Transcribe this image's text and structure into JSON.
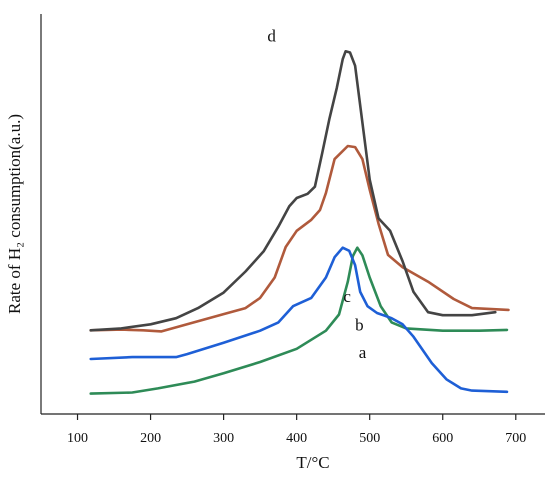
{
  "chart_data": {
    "type": "line",
    "title": "",
    "xlabel": "T/°C",
    "ylabel": "Rate of H₂ consumption(a.u.)",
    "xlim": [
      50,
      740
    ],
    "ylim": [
      0,
      1
    ],
    "x_ticks": [
      100,
      200,
      300,
      400,
      500,
      600,
      700
    ],
    "y_ticks": [],
    "grid": false,
    "legend": "none",
    "series": [
      {
        "name": "a",
        "color": "#2e8b57",
        "label_at": [
          485,
          0.149
        ],
        "points": [
          [
            118,
            0.054
          ],
          [
            175,
            0.057
          ],
          [
            210,
            0.068
          ],
          [
            260,
            0.086
          ],
          [
            300,
            0.108
          ],
          [
            350,
            0.138
          ],
          [
            400,
            0.173
          ],
          [
            440,
            0.221
          ],
          [
            458,
            0.264
          ],
          [
            470,
            0.351
          ],
          [
            477,
            0.419
          ],
          [
            483,
            0.441
          ],
          [
            490,
            0.421
          ],
          [
            500,
            0.362
          ],
          [
            515,
            0.286
          ],
          [
            530,
            0.243
          ],
          [
            550,
            0.227
          ],
          [
            600,
            0.221
          ],
          [
            650,
            0.221
          ],
          [
            688,
            0.223
          ]
        ]
      },
      {
        "name": "b",
        "color": "#1e5fd6",
        "label_at": [
          480,
          0.221
        ],
        "points": [
          [
            118,
            0.146
          ],
          [
            175,
            0.151
          ],
          [
            235,
            0.151
          ],
          [
            250,
            0.159
          ],
          [
            300,
            0.189
          ],
          [
            350,
            0.221
          ],
          [
            375,
            0.243
          ],
          [
            395,
            0.286
          ],
          [
            420,
            0.308
          ],
          [
            440,
            0.362
          ],
          [
            452,
            0.416
          ],
          [
            463,
            0.441
          ],
          [
            472,
            0.433
          ],
          [
            480,
            0.395
          ],
          [
            487,
            0.324
          ],
          [
            497,
            0.286
          ],
          [
            510,
            0.268
          ],
          [
            530,
            0.254
          ],
          [
            545,
            0.238
          ],
          [
            560,
            0.205
          ],
          [
            585,
            0.135
          ],
          [
            605,
            0.092
          ],
          [
            625,
            0.068
          ],
          [
            640,
            0.062
          ],
          [
            688,
            0.059
          ]
        ]
      },
      {
        "name": "c",
        "color": "#b05a3c",
        "label_at": [
          464,
          0.297
        ],
        "points": [
          [
            118,
            0.222
          ],
          [
            160,
            0.224
          ],
          [
            190,
            0.222
          ],
          [
            215,
            0.219
          ],
          [
            250,
            0.238
          ],
          [
            300,
            0.265
          ],
          [
            330,
            0.281
          ],
          [
            350,
            0.308
          ],
          [
            370,
            0.362
          ],
          [
            385,
            0.443
          ],
          [
            400,
            0.486
          ],
          [
            420,
            0.515
          ],
          [
            432,
            0.541
          ],
          [
            440,
            0.586
          ],
          [
            452,
            0.676
          ],
          [
            470,
            0.711
          ],
          [
            480,
            0.708
          ],
          [
            490,
            0.676
          ],
          [
            500,
            0.595
          ],
          [
            512,
            0.505
          ],
          [
            525,
            0.422
          ],
          [
            545,
            0.389
          ],
          [
            580,
            0.351
          ],
          [
            615,
            0.305
          ],
          [
            640,
            0.281
          ],
          [
            690,
            0.276
          ]
        ]
      },
      {
        "name": "d",
        "color": "#444444",
        "label_at": [
          360,
          0.988
        ],
        "points": [
          [
            118,
            0.222
          ],
          [
            160,
            0.227
          ],
          [
            200,
            0.238
          ],
          [
            235,
            0.254
          ],
          [
            265,
            0.281
          ],
          [
            300,
            0.322
          ],
          [
            330,
            0.378
          ],
          [
            355,
            0.432
          ],
          [
            375,
            0.497
          ],
          [
            390,
            0.551
          ],
          [
            400,
            0.573
          ],
          [
            415,
            0.584
          ],
          [
            425,
            0.603
          ],
          [
            435,
            0.692
          ],
          [
            445,
            0.784
          ],
          [
            455,
            0.865
          ],
          [
            463,
            0.941
          ],
          [
            467,
            0.962
          ],
          [
            473,
            0.959
          ],
          [
            480,
            0.924
          ],
          [
            490,
            0.773
          ],
          [
            500,
            0.622
          ],
          [
            512,
            0.519
          ],
          [
            528,
            0.486
          ],
          [
            545,
            0.405
          ],
          [
            560,
            0.324
          ],
          [
            580,
            0.27
          ],
          [
            600,
            0.262
          ],
          [
            640,
            0.262
          ],
          [
            672,
            0.27
          ]
        ]
      }
    ]
  }
}
